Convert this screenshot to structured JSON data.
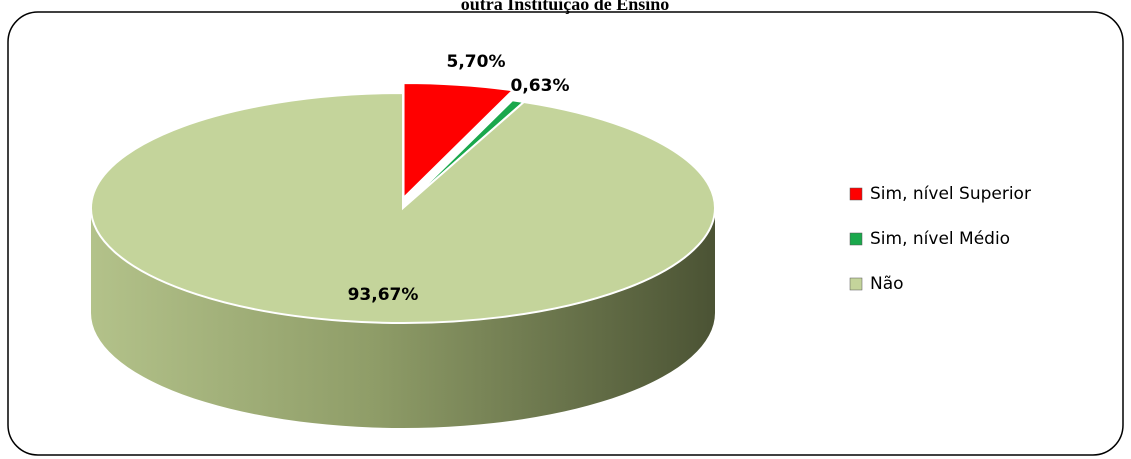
{
  "chart_data": {
    "type": "pie",
    "title": "outra Instituição de Ensino",
    "categories": [
      "Sim, nível Superior",
      "Sim, nível Médio",
      "Não"
    ],
    "values": [
      5.7,
      0.63,
      93.67
    ],
    "value_labels": [
      "5,70%",
      "0,63%",
      "93,67%"
    ],
    "colors": [
      "#ff0000",
      "#1aa84c",
      "#c4d49b"
    ],
    "legend": "right"
  }
}
